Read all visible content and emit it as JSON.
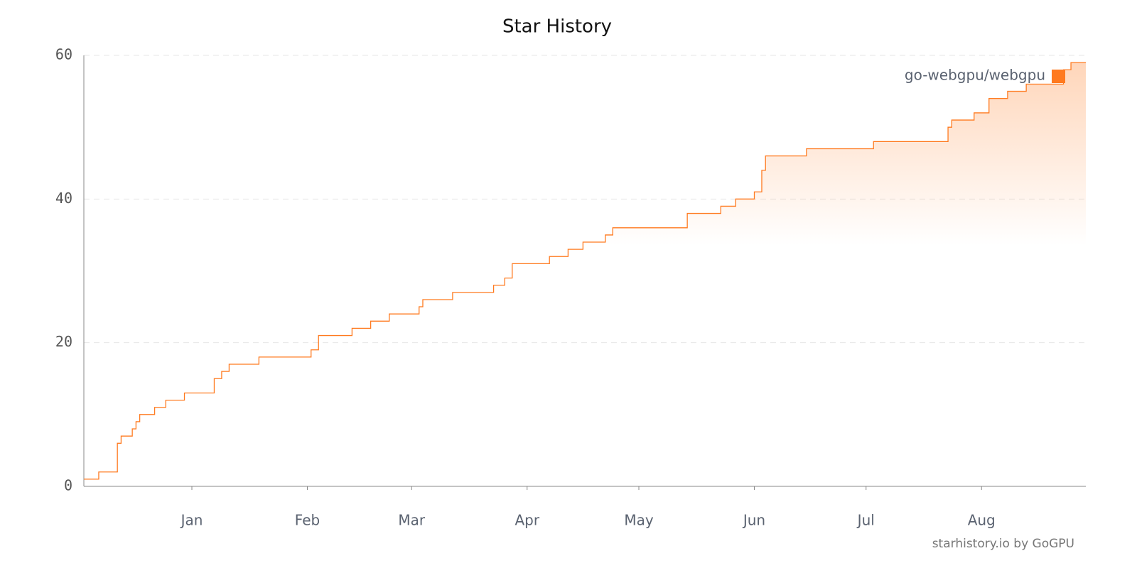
{
  "chart_data": {
    "type": "line",
    "title": "Star History",
    "footer": "starhistory.io by GoGPU",
    "legend_position": "upper right",
    "xlim": [
      -29,
      240
    ],
    "xticks": [
      {
        "value": 0,
        "label": "Jan"
      },
      {
        "value": 31,
        "label": "Feb"
      },
      {
        "value": 59,
        "label": "Mar"
      },
      {
        "value": 90,
        "label": "Apr"
      },
      {
        "value": 120,
        "label": "May"
      },
      {
        "value": 151,
        "label": "Jun"
      },
      {
        "value": 181,
        "label": "Jul"
      },
      {
        "value": 212,
        "label": "Aug"
      }
    ],
    "ylim": [
      0,
      60
    ],
    "yticks": [
      0,
      20,
      40,
      60
    ],
    "grid": true,
    "x": [
      -29,
      -25,
      -20,
      -20,
      -19,
      -16,
      -15,
      -14,
      -10,
      -7,
      -2,
      6,
      8,
      10,
      18,
      32,
      34,
      34,
      43,
      48,
      53,
      61,
      62,
      70,
      81,
      84,
      86,
      86,
      96,
      101,
      105,
      111,
      113,
      133,
      142,
      146,
      151,
      153,
      154,
      165,
      183,
      203,
      204,
      210,
      214,
      219,
      224,
      234,
      236,
      240
    ],
    "series": [
      {
        "name": "go-webgpu/webgpu",
        "color": "#ff7a1f",
        "values": [
          1,
          2,
          5,
          6,
          7,
          8,
          9,
          10,
          11,
          12,
          13,
          15,
          16,
          17,
          18,
          19,
          20,
          21,
          22,
          23,
          24,
          25,
          26,
          27,
          28,
          29,
          30,
          31,
          32,
          33,
          34,
          35,
          36,
          38,
          39,
          40,
          41,
          44,
          46,
          47,
          48,
          50,
          51,
          52,
          54,
          55,
          56,
          58,
          59,
          59
        ]
      }
    ]
  }
}
